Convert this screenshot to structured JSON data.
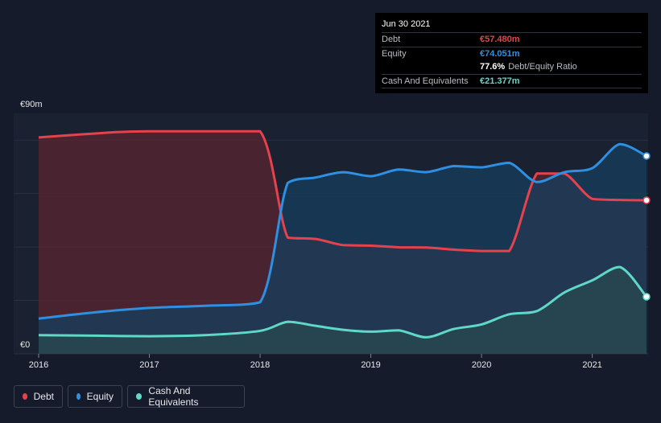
{
  "chart_data": {
    "type": "area",
    "x_range": [
      2015.85,
      2021.49
    ],
    "ylim": [
      0,
      90
    ],
    "y_tick_labels": [
      {
        "value": 90,
        "label": "€90m"
      },
      {
        "value": 0,
        "label": "€0"
      }
    ],
    "gridlines": [
      0,
      20,
      40,
      60,
      80
    ],
    "x_ticks": [
      {
        "value": 2016,
        "label": "2016"
      },
      {
        "value": 2017,
        "label": "2017"
      },
      {
        "value": 2018,
        "label": "2018"
      },
      {
        "value": 2019,
        "label": "2019"
      },
      {
        "value": 2020,
        "label": "2020"
      },
      {
        "value": 2021,
        "label": "2021"
      }
    ],
    "series": [
      {
        "name": "Debt",
        "color": "#e5424d",
        "fill": "#5a2630",
        "points": [
          [
            2016.0,
            81.0
          ],
          [
            2016.7,
            83.0
          ],
          [
            2017.0,
            83.3
          ],
          [
            2017.5,
            83.3
          ],
          [
            2018.0,
            83.3
          ],
          [
            2018.25,
            43.5
          ],
          [
            2018.5,
            43.0
          ],
          [
            2018.75,
            40.7
          ],
          [
            2019.0,
            40.5
          ],
          [
            2019.25,
            39.9
          ],
          [
            2019.5,
            39.8
          ],
          [
            2019.75,
            39.0
          ],
          [
            2020.0,
            38.5
          ],
          [
            2020.25,
            38.5
          ],
          [
            2020.5,
            67.5
          ],
          [
            2020.75,
            67.5
          ],
          [
            2021.0,
            58.0
          ],
          [
            2021.25,
            57.6
          ],
          [
            2021.49,
            57.48
          ]
        ]
      },
      {
        "name": "Equity",
        "color": "#2f8fe0",
        "fill": "#153d5e",
        "points": [
          [
            2016.0,
            13.2
          ],
          [
            2016.5,
            15.5
          ],
          [
            2017.0,
            17.2
          ],
          [
            2017.5,
            18.0
          ],
          [
            2018.0,
            19.3
          ],
          [
            2018.25,
            64.0
          ],
          [
            2018.5,
            66.0
          ],
          [
            2018.75,
            68.0
          ],
          [
            2019.0,
            66.5
          ],
          [
            2019.25,
            69.0
          ],
          [
            2019.5,
            68.0
          ],
          [
            2019.75,
            70.3
          ],
          [
            2020.0,
            69.8
          ],
          [
            2020.25,
            71.5
          ],
          [
            2020.5,
            64.3
          ],
          [
            2020.75,
            68.0
          ],
          [
            2021.0,
            69.5
          ],
          [
            2021.25,
            78.5
          ],
          [
            2021.49,
            74.051
          ]
        ]
      },
      {
        "name": "Cash And Equivalents",
        "color": "#5fd8c8",
        "fill": "#2a4a52",
        "points": [
          [
            2016.0,
            7.0
          ],
          [
            2016.5,
            6.8
          ],
          [
            2017.0,
            6.6
          ],
          [
            2017.5,
            7.0
          ],
          [
            2018.0,
            8.6
          ],
          [
            2018.25,
            12.0
          ],
          [
            2018.5,
            10.5
          ],
          [
            2018.75,
            9.0
          ],
          [
            2019.0,
            8.3
          ],
          [
            2019.25,
            8.8
          ],
          [
            2019.5,
            6.2
          ],
          [
            2019.75,
            9.3
          ],
          [
            2020.0,
            11.0
          ],
          [
            2020.25,
            14.8
          ],
          [
            2020.5,
            16.0
          ],
          [
            2020.75,
            23.0
          ],
          [
            2021.0,
            27.5
          ],
          [
            2021.25,
            32.5
          ],
          [
            2021.49,
            21.377
          ]
        ]
      }
    ],
    "tooltip": {
      "date": "Jun 30 2021",
      "debt_label": "Debt",
      "debt_value": "€57.480m",
      "equity_label": "Equity",
      "equity_value": "€74.051m",
      "ratio_value": "77.6%",
      "ratio_label": "Debt/Equity Ratio",
      "cash_label": "Cash And Equivalents",
      "cash_value": "€21.377m"
    },
    "legend": [
      {
        "label": "Debt",
        "color": "#e5424d"
      },
      {
        "label": "Equity",
        "color": "#2f8fe0"
      },
      {
        "label": "Cash And Equivalents",
        "color": "#5fd8c8"
      }
    ]
  }
}
